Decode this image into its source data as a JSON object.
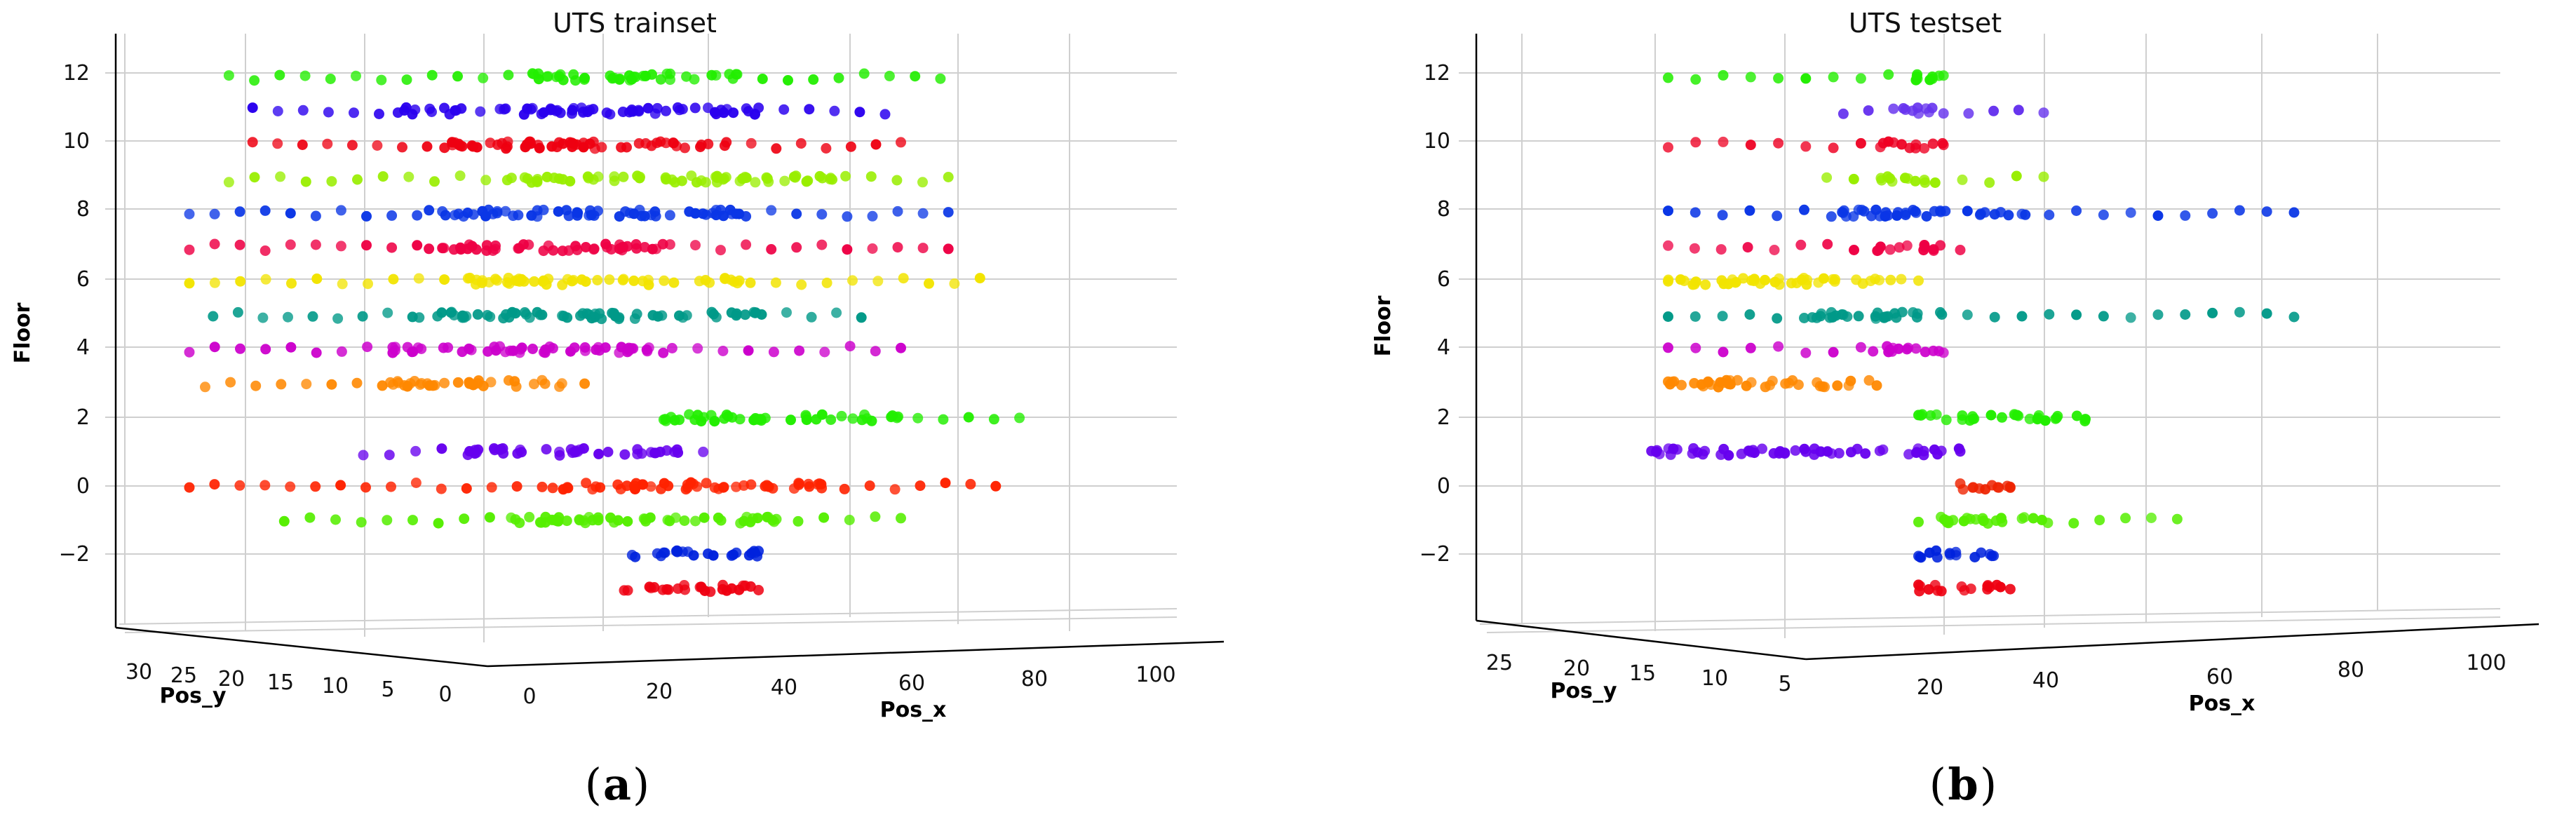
{
  "figure": {
    "panel_a": {
      "open": "(",
      "letter": "a",
      "close": ")"
    },
    "panel_b": {
      "open": "(",
      "letter": "b",
      "close": ")"
    }
  },
  "chart_data": [
    {
      "type": "scatter",
      "projection": "3d",
      "title": "UTS trainset",
      "xlabel": "Pos_x",
      "ylabel": "Pos_y",
      "zlabel": "Floor",
      "xticks": [
        "0",
        "20",
        "40",
        "60",
        "80",
        "100"
      ],
      "yticks": [
        "0",
        "5",
        "10",
        "15",
        "20",
        "25",
        "30"
      ],
      "zticks": [
        "−2",
        "0",
        "2",
        "4",
        "6",
        "8",
        "10",
        "12"
      ],
      "xlim": [
        0,
        110
      ],
      "ylim": [
        0,
        32
      ],
      "zlim": [
        -4,
        13
      ],
      "series": [
        {
          "floor": 12,
          "color": "#22ee00",
          "x_range": [
            5,
            95
          ],
          "dense_range": [
            42,
            70
          ]
        },
        {
          "floor": 11,
          "color": "#2a00ee",
          "x_range": [
            8,
            88
          ],
          "dense_range": [
            25,
            72
          ]
        },
        {
          "floor": 10,
          "color": "#ee0011",
          "x_range": [
            8,
            90
          ],
          "dense_range": [
            30,
            70
          ]
        },
        {
          "floor": 9,
          "color": "#99ee00",
          "x_range": [
            5,
            96
          ],
          "dense_range": [
            40,
            82
          ]
        },
        {
          "floor": 8,
          "color": "#0a36e6",
          "x_range": [
            0,
            96
          ],
          "dense_range": [
            30,
            70
          ]
        },
        {
          "floor": 7,
          "color": "#ee0044",
          "x_range": [
            0,
            96
          ],
          "dense_range": [
            30,
            62
          ]
        },
        {
          "floor": 6,
          "color": "#f2e400",
          "x_range": [
            0,
            100
          ],
          "dense_range": [
            35,
            70
          ]
        },
        {
          "floor": 5,
          "color": "#009988",
          "x_range": [
            3,
            85
          ],
          "dense_range": [
            28,
            72
          ]
        },
        {
          "floor": 4,
          "color": "#cc00cc",
          "x_range": [
            0,
            90
          ],
          "dense_range": [
            25,
            60
          ]
        },
        {
          "floor": 3,
          "color": "#ff8800",
          "x_range": [
            2,
            50
          ],
          "dense_range": [
            25,
            48
          ]
        },
        {
          "floor": 2,
          "color": "#22ee00",
          "x_range": [
            60,
            105
          ],
          "dense_range": [
            60,
            90
          ]
        },
        {
          "floor": 1,
          "color": "#6600ee",
          "x_range": [
            22,
            65
          ],
          "dense_range": [
            35,
            62
          ]
        },
        {
          "floor": 0,
          "color": "#ff2200",
          "x_range": [
            0,
            102
          ],
          "dense_range": [
            45,
            80
          ]
        },
        {
          "floor": -1,
          "color": "#55ee00",
          "x_range": [
            12,
            90
          ],
          "dense_range": [
            40,
            75
          ]
        },
        {
          "floor": -2,
          "color": "#0022dd",
          "x_range": [
            56,
            72
          ],
          "dense_range": [
            56,
            72
          ]
        },
        {
          "floor": -3,
          "color": "#ee0011",
          "x_range": [
            55,
            72
          ],
          "dense_range": [
            55,
            72
          ]
        }
      ]
    },
    {
      "type": "scatter",
      "projection": "3d",
      "title": "UTS testset",
      "xlabel": "Pos_x",
      "ylabel": "Pos_y",
      "zlabel": "Floor",
      "xticks": [
        "20",
        "40",
        "60",
        "80",
        "100"
      ],
      "yticks": [
        "5",
        "10",
        "15",
        "20",
        "25"
      ],
      "zticks": [
        "−2",
        "0",
        "2",
        "4",
        "6",
        "8",
        "10",
        "12"
      ],
      "xlim": [
        10,
        110
      ],
      "ylim": [
        2,
        28
      ],
      "zlim": [
        -4,
        13
      ],
      "series": [
        {
          "floor": 12,
          "color": "#22ee00",
          "x_range": [
            25,
            58
          ],
          "dense_range": [
            52,
            58
          ]
        },
        {
          "floor": 11,
          "color": "#6633ee",
          "x_range": [
            46,
            70
          ],
          "dense_range": [
            52,
            58
          ]
        },
        {
          "floor": 10,
          "color": "#ee0022",
          "x_range": [
            25,
            58
          ],
          "dense_range": [
            50,
            58
          ]
        },
        {
          "floor": 9,
          "color": "#99ee00",
          "x_range": [
            44,
            70
          ],
          "dense_range": [
            50,
            57
          ]
        },
        {
          "floor": 8,
          "color": "#0a36e6",
          "x_range": [
            25,
            100
          ],
          "dense_range": [
            45,
            70
          ]
        },
        {
          "floor": 7,
          "color": "#ee0044",
          "x_range": [
            25,
            60
          ],
          "dense_range": [
            50,
            58
          ]
        },
        {
          "floor": 6,
          "color": "#f2e400",
          "x_range": [
            25,
            55
          ],
          "dense_range": [
            25,
            55
          ]
        },
        {
          "floor": 5,
          "color": "#009988",
          "x_range": [
            25,
            100
          ],
          "dense_range": [
            40,
            60
          ]
        },
        {
          "floor": 4,
          "color": "#cc00cc",
          "x_range": [
            25,
            58
          ],
          "dense_range": [
            48,
            58
          ]
        },
        {
          "floor": 3,
          "color": "#ff8800",
          "x_range": [
            25,
            50
          ],
          "dense_range": [
            25,
            50
          ]
        },
        {
          "floor": 2,
          "color": "#22ee00",
          "x_range": [
            55,
            75
          ],
          "dense_range": [
            55,
            75
          ]
        },
        {
          "floor": 1,
          "color": "#6600ee",
          "x_range": [
            23,
            60
          ],
          "dense_range": [
            23,
            60
          ]
        },
        {
          "floor": 0,
          "color": "#ee2200",
          "x_range": [
            60,
            66
          ],
          "dense_range": [
            60,
            66
          ]
        },
        {
          "floor": -1,
          "color": "#55ee00",
          "x_range": [
            55,
            86
          ],
          "dense_range": [
            55,
            70
          ]
        },
        {
          "floor": -2,
          "color": "#0022dd",
          "x_range": [
            55,
            64
          ],
          "dense_range": [
            55,
            64
          ]
        },
        {
          "floor": -3,
          "color": "#ee0011",
          "x_range": [
            55,
            66
          ],
          "dense_range": [
            55,
            66
          ]
        }
      ]
    }
  ]
}
